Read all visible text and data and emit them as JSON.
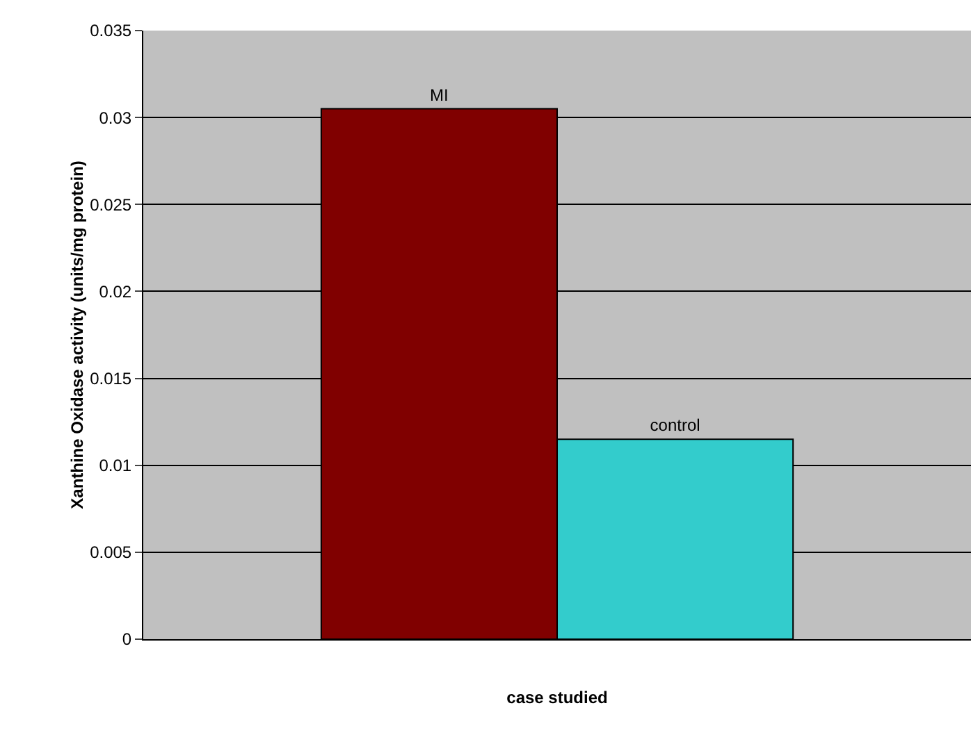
{
  "chart_data": {
    "type": "bar",
    "xlabel": "case studied",
    "ylabel": "Xanthine Oxidase activity (units/mg protein)",
    "categories": [
      null
    ],
    "series": [
      {
        "name": "MI",
        "color": "#800000",
        "values": [
          0.0305
        ]
      },
      {
        "name": "control",
        "color": "#33cccc",
        "values": [
          0.0115
        ]
      }
    ],
    "ylim": [
      0,
      0.035
    ],
    "yticks": [
      0,
      0.005,
      0.01,
      0.015,
      0.02,
      0.025,
      0.03,
      0.035
    ],
    "grid": "y",
    "legend": false
  }
}
